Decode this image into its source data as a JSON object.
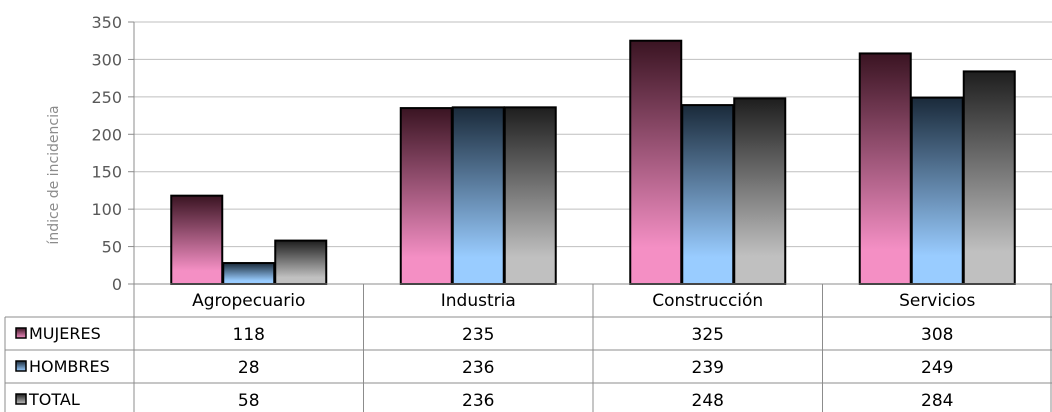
{
  "chart_data": {
    "type": "bar",
    "title": "",
    "xlabel": "",
    "ylabel": "índice de incidencia",
    "ylim": [
      0,
      350
    ],
    "yticks": [
      0,
      50,
      100,
      150,
      200,
      250,
      300,
      350
    ],
    "grid": true,
    "legend": "data-table",
    "categories": [
      "Agropecuario",
      "Industria",
      "Construcción",
      "Servicios"
    ],
    "series": [
      {
        "name": "MUJERES",
        "values": [
          118,
          235,
          325,
          308
        ],
        "color": "#f48fc4",
        "color_dark": "#3a1422"
      },
      {
        "name": "HOMBRES",
        "values": [
          28,
          236,
          239,
          249
        ],
        "color": "#99ccff",
        "color_dark": "#1a2a3a"
      },
      {
        "name": "TOTAL",
        "values": [
          58,
          236,
          248,
          284
        ],
        "color": "#c0c0c0",
        "color_dark": "#1e1e1e"
      }
    ]
  }
}
